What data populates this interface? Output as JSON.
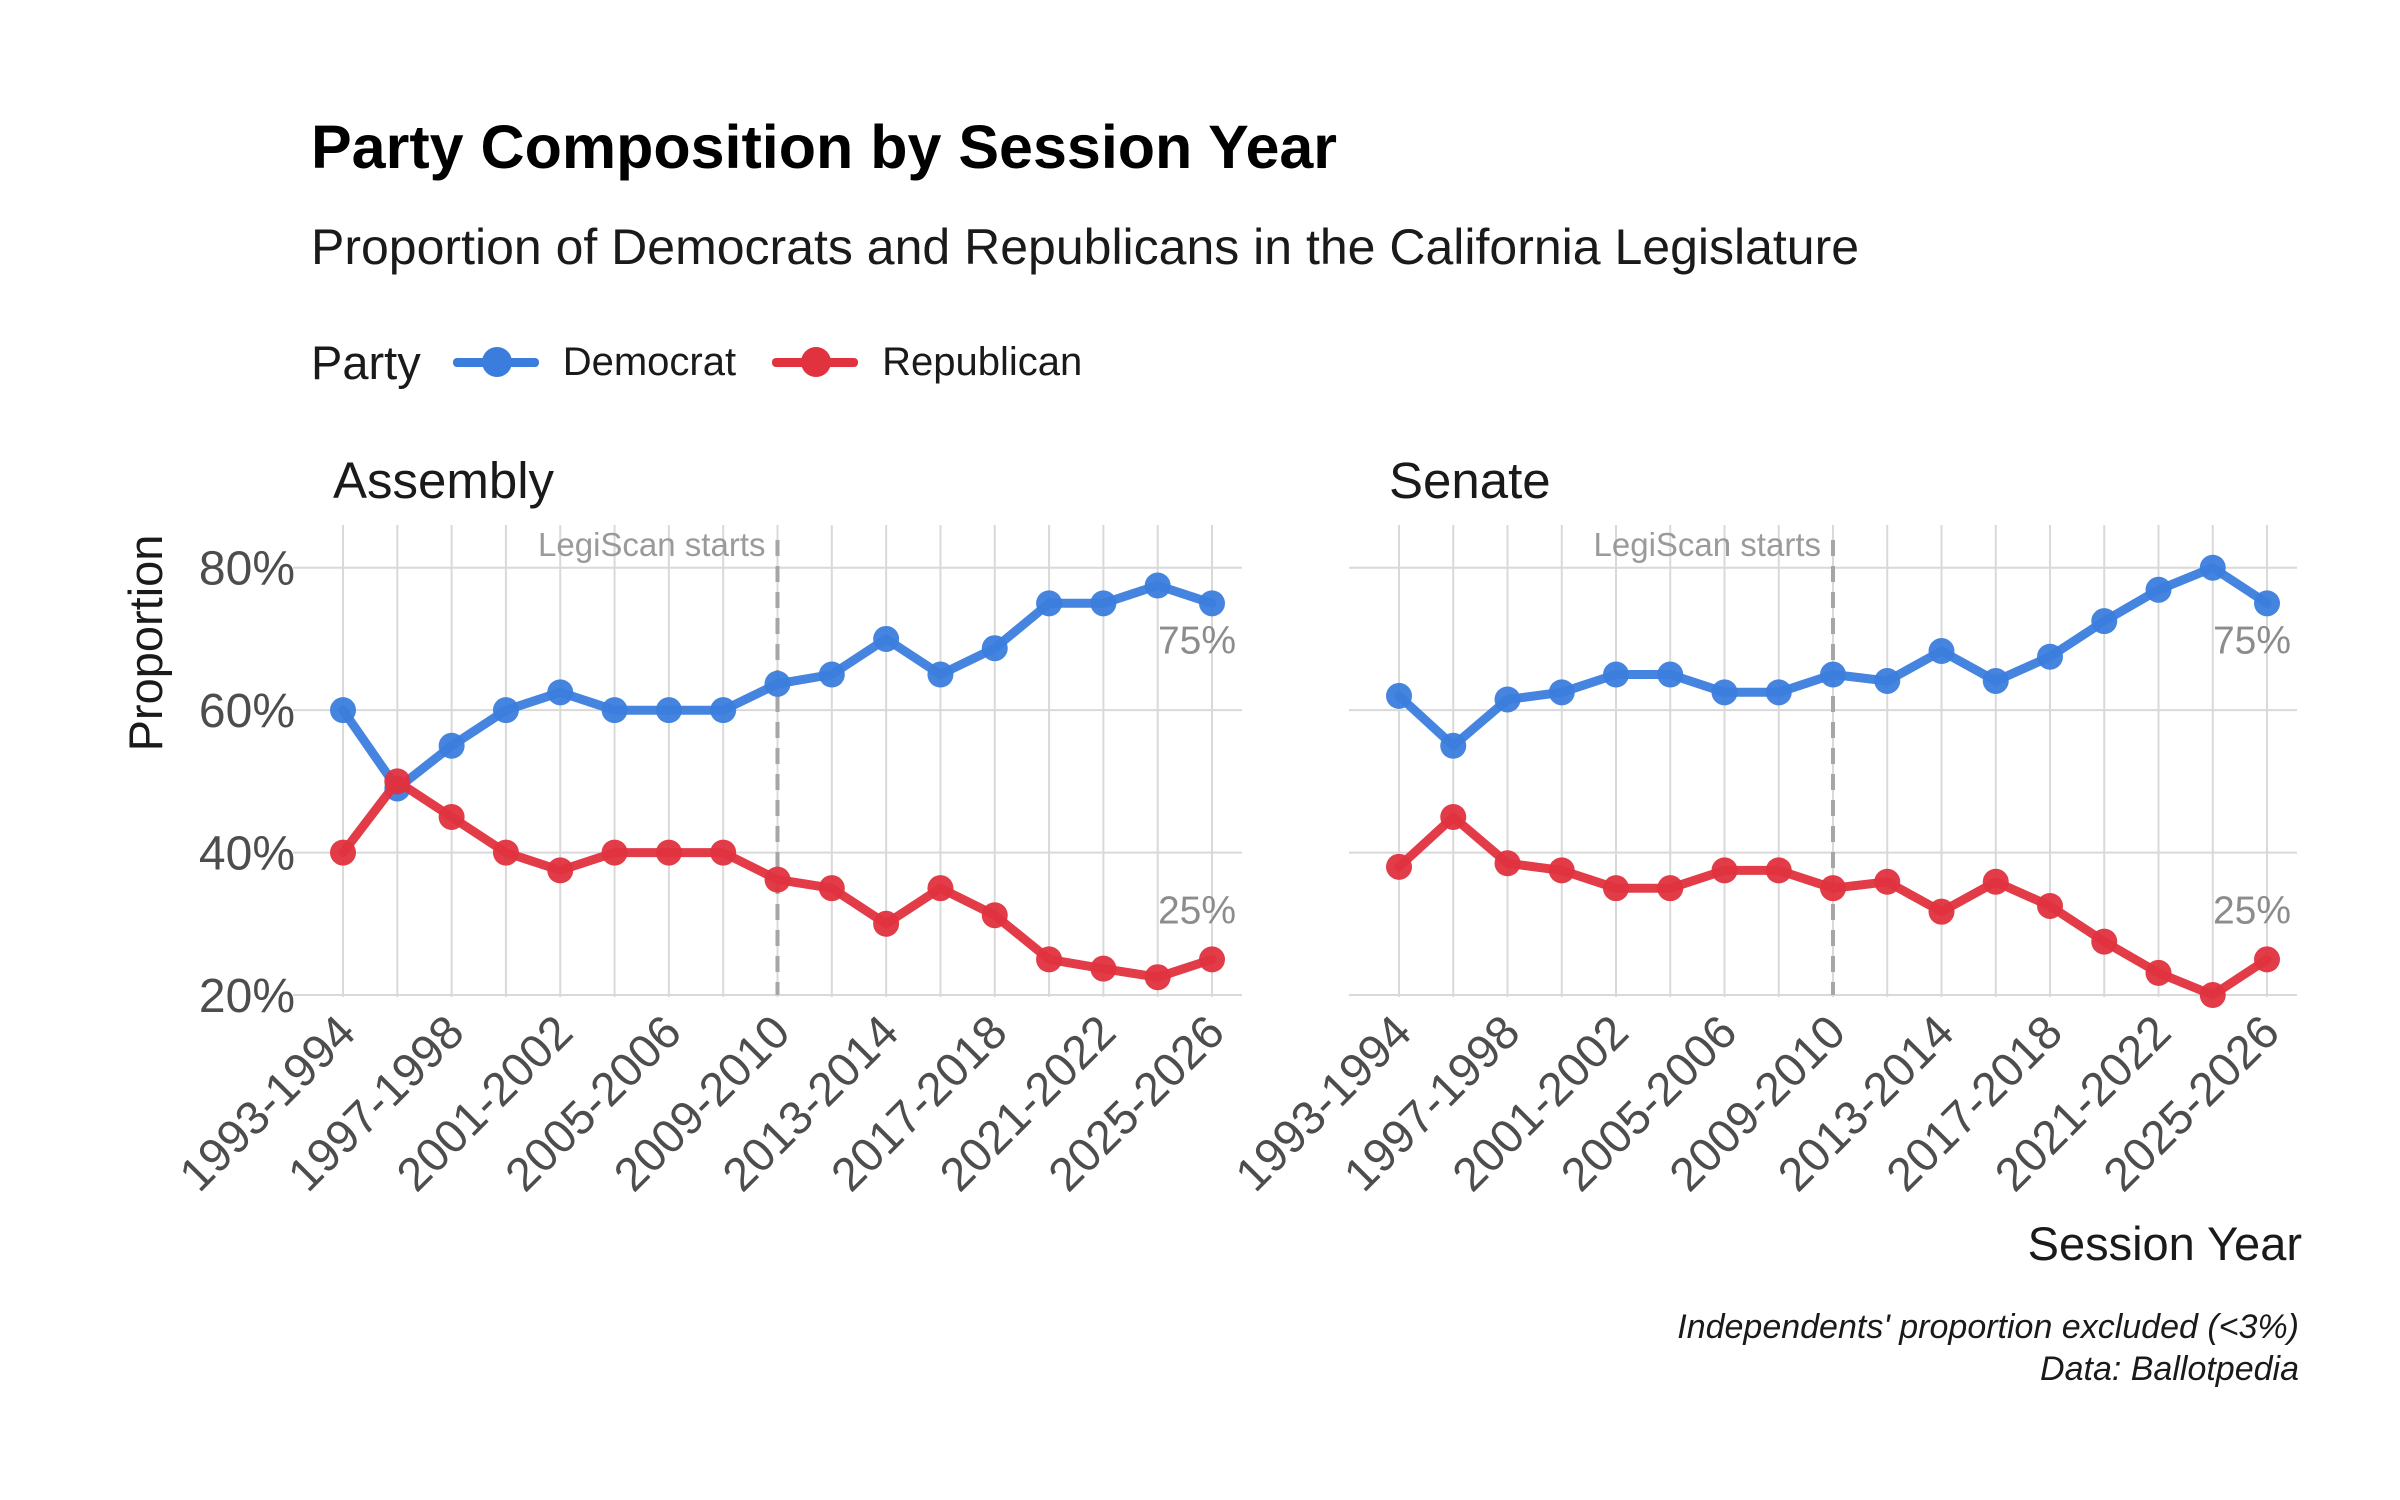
{
  "title": "Party Composition by Session Year",
  "subtitle": "Proportion of Democrats and Republicans in the California Legislature",
  "legend": {
    "title": "Party",
    "items": [
      {
        "label": "Democrat",
        "color": "#3b7ddd"
      },
      {
        "label": "Republican",
        "color": "#e0323f"
      }
    ]
  },
  "caption": {
    "line1": "Independents' proportion excluded (<3%)",
    "line2": "Data: Ballotpedia"
  },
  "colors": {
    "democrat": "#3b7ddd",
    "republican": "#e0323f",
    "grid": "#d9d9d9",
    "annotation": "#8c8c8c"
  },
  "chart_data": {
    "type": "line",
    "ylabel": "Proportion",
    "xlabel": "Session Year",
    "ylim": [
      0.2,
      0.86
    ],
    "y_ticks": [
      "20%",
      "40%",
      "60%",
      "80%"
    ],
    "y_tick_values": [
      0.2,
      0.4,
      0.6,
      0.8
    ],
    "x_tick_labels": [
      "1993-1994",
      "1997-1998",
      "2001-2002",
      "2005-2006",
      "2009-2010",
      "2013-2014",
      "2017-2018",
      "2021-2022",
      "2025-2026"
    ],
    "categories": [
      "1993-1994",
      "1995-1996",
      "1997-1998",
      "1999-2000",
      "2001-2002",
      "2003-2004",
      "2005-2006",
      "2007-2008",
      "2009-2010",
      "2011-2012",
      "2013-2014",
      "2015-2016",
      "2017-2018",
      "2019-2020",
      "2021-2022",
      "2023-2024",
      "2025-2026"
    ],
    "grid": true,
    "legend_position": "top-left",
    "vline": {
      "category": "2009-2010",
      "label": "LegiScan starts",
      "style": "dashed"
    },
    "panels": [
      {
        "name": "Assembly",
        "series": [
          {
            "name": "Democrat",
            "values": [
              0.6,
              0.49,
              0.55,
              0.6,
              0.625,
              0.6,
              0.6,
              0.6,
              0.637,
              0.65,
              0.7,
              0.65,
              0.687,
              0.75,
              0.75,
              0.775,
              0.75
            ]
          },
          {
            "name": "Republican",
            "values": [
              0.4,
              0.5,
              0.45,
              0.4,
              0.375,
              0.4,
              0.4,
              0.4,
              0.362,
              0.35,
              0.3,
              0.35,
              0.312,
              0.25,
              0.237,
              0.225,
              0.25
            ]
          }
        ],
        "end_labels": {
          "democrat": "75%",
          "republican": "25%"
        }
      },
      {
        "name": "Senate",
        "series": [
          {
            "name": "Democrat",
            "values": [
              0.62,
              0.55,
              0.615,
              0.625,
              0.65,
              0.65,
              0.625,
              0.625,
              0.65,
              0.641,
              0.683,
              0.641,
              0.675,
              0.725,
              0.769,
              0.8,
              0.75
            ]
          },
          {
            "name": "Republican",
            "values": [
              0.38,
              0.45,
              0.385,
              0.375,
              0.35,
              0.35,
              0.375,
              0.375,
              0.35,
              0.359,
              0.317,
              0.359,
              0.325,
              0.275,
              0.231,
              0.2,
              0.25
            ]
          }
        ],
        "end_labels": {
          "democrat": "75%",
          "republican": "25%"
        }
      }
    ]
  }
}
